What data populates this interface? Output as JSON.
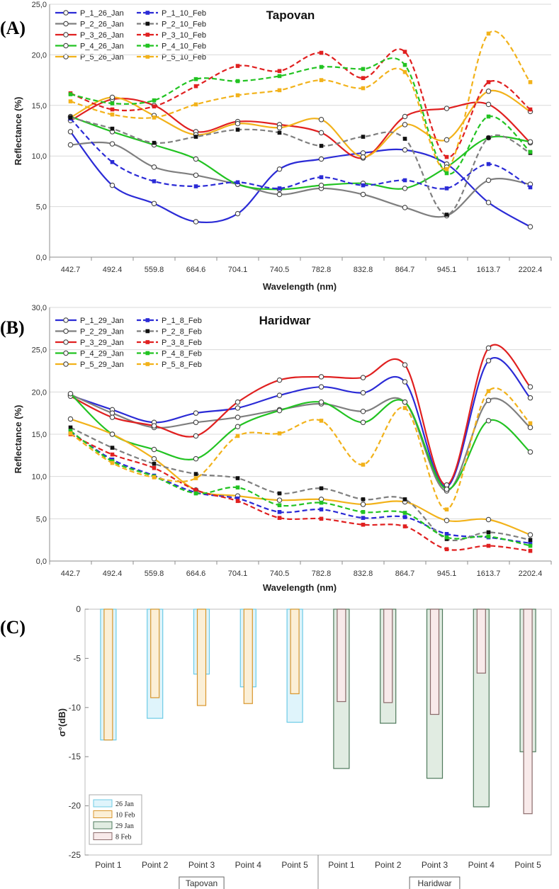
{
  "chart_data": [
    {
      "type": "line",
      "panel_label": "(A)",
      "title": "Tapovan",
      "xlabel": "Wavelength (nm)",
      "ylabel": "Reflectance (%)",
      "categories": [
        "442.7",
        "492.4",
        "559.8",
        "664.6",
        "704.1",
        "740.5",
        "782.8",
        "832.8",
        "864.7",
        "945.1",
        "1613.7",
        "2202.4"
      ],
      "ylim": [
        0,
        25
      ],
      "yticks": [
        "0,0",
        "5,0",
        "10,0",
        "15,0",
        "20,0",
        "25,0"
      ],
      "ytick_values": [
        0,
        5,
        10,
        15,
        20,
        25
      ],
      "series": [
        {
          "name": "P_1_26_Jan",
          "color": "#2b2bd6",
          "style": "solid",
          "values": [
            12.4,
            7.1,
            5.3,
            3.5,
            4.3,
            8.7,
            9.7,
            10.3,
            10.6,
            9.2,
            5.4,
            3.0
          ]
        },
        {
          "name": "P_2_26_Jan",
          "color": "#7f7f7f",
          "style": "solid",
          "values": [
            11.1,
            11.2,
            8.9,
            8.1,
            7.2,
            6.2,
            6.8,
            6.2,
            4.9,
            4.1,
            7.6,
            7.2
          ]
        },
        {
          "name": "P_3_26_Jan",
          "color": "#e02020",
          "style": "solid",
          "values": [
            13.5,
            15.6,
            15.0,
            12.4,
            13.4,
            13.1,
            12.3,
            9.8,
            13.9,
            14.7,
            15.1,
            11.3
          ]
        },
        {
          "name": "P_4_26_Jan",
          "color": "#22c322",
          "style": "solid",
          "values": [
            13.9,
            12.4,
            11.1,
            9.7,
            7.2,
            6.7,
            7.1,
            7.3,
            6.8,
            8.9,
            11.8,
            11.4
          ]
        },
        {
          "name": "P_5_26_Jan",
          "color": "#f2b21a",
          "style": "solid",
          "values": [
            13.8,
            15.8,
            14.0,
            12.1,
            13.2,
            12.8,
            13.6,
            9.9,
            13.1,
            11.6,
            16.4,
            14.4
          ]
        },
        {
          "name": "P_1_10_Feb",
          "color": "#2b2bd6",
          "style": "dashed",
          "values": [
            13.7,
            9.4,
            7.5,
            7.0,
            7.4,
            6.8,
            7.9,
            7.1,
            7.6,
            6.8,
            9.2,
            6.9
          ]
        },
        {
          "name": "P_2_10_Feb",
          "color": "#7f7f7f",
          "style": "dashed",
          "values": [
            13.8,
            12.7,
            11.3,
            11.9,
            12.6,
            12.3,
            11.0,
            11.9,
            11.7,
            4.2,
            11.8,
            10.3
          ]
        },
        {
          "name": "P_3_10_Feb",
          "color": "#e02020",
          "style": "dashed",
          "values": [
            16.2,
            14.6,
            14.9,
            16.9,
            18.9,
            18.4,
            20.2,
            17.7,
            20.3,
            9.9,
            17.3,
            14.6
          ]
        },
        {
          "name": "P_4_10_Feb",
          "color": "#22c322",
          "style": "dashed",
          "values": [
            16.1,
            15.2,
            15.5,
            17.6,
            17.4,
            17.9,
            18.8,
            18.6,
            19.0,
            8.3,
            13.9,
            10.4
          ]
        },
        {
          "name": "P_5_10_Feb",
          "color": "#f2b21a",
          "style": "dashed",
          "values": [
            15.4,
            14.1,
            13.8,
            15.1,
            16.0,
            16.5,
            17.5,
            16.7,
            18.3,
            8.7,
            22.1,
            17.3
          ]
        }
      ]
    },
    {
      "type": "line",
      "panel_label": "(B)",
      "title": "Haridwar",
      "xlabel": "Wavelength (nm)",
      "ylabel": "Reflectance (%)",
      "categories": [
        "442.7",
        "492.4",
        "559.8",
        "664.6",
        "704.1",
        "740.5",
        "782.8",
        "832.8",
        "864.7",
        "945.1",
        "1613.7",
        "2202.4"
      ],
      "ylim": [
        0,
        30
      ],
      "yticks": [
        "0,0",
        "5,0",
        "10,0",
        "15,0",
        "20,0",
        "25,0",
        "30,0"
      ],
      "ytick_values": [
        0,
        5,
        10,
        15,
        20,
        25,
        30
      ],
      "series": [
        {
          "name": "P_1_29_Jan",
          "color": "#2b2bd6",
          "style": "solid",
          "values": [
            19.6,
            17.9,
            16.4,
            17.5,
            18.1,
            19.6,
            20.6,
            19.9,
            21.2,
            8.8,
            23.7,
            19.3
          ]
        },
        {
          "name": "P_2_29_Jan",
          "color": "#7f7f7f",
          "style": "solid",
          "values": [
            19.7,
            17.5,
            15.8,
            16.4,
            17.0,
            17.9,
            18.6,
            17.7,
            18.8,
            8.3,
            19.0,
            15.8
          ]
        },
        {
          "name": "P_3_29_Jan",
          "color": "#e02020",
          "style": "solid",
          "values": [
            19.5,
            17.0,
            16.0,
            14.8,
            18.8,
            21.4,
            21.8,
            21.7,
            23.2,
            9.0,
            25.2,
            20.6
          ]
        },
        {
          "name": "P_4_29_Jan",
          "color": "#22c322",
          "style": "solid",
          "values": [
            19.8,
            15.0,
            13.2,
            12.1,
            15.9,
            17.8,
            18.8,
            16.4,
            18.8,
            8.5,
            16.6,
            12.9
          ]
        },
        {
          "name": "P_5_29_Jan",
          "color": "#f2b21a",
          "style": "solid",
          "values": [
            16.8,
            15.0,
            12.1,
            8.4,
            7.7,
            7.2,
            7.3,
            6.7,
            7.0,
            4.8,
            4.9,
            3.1
          ]
        },
        {
          "name": "P_1_8_Feb",
          "color": "#2b2bd6",
          "style": "dashed",
          "values": [
            15.3,
            12.0,
            10.1,
            8.1,
            7.4,
            5.8,
            6.1,
            5.1,
            5.2,
            3.2,
            2.8,
            2.1
          ]
        },
        {
          "name": "P_2_8_Feb",
          "color": "#7f7f7f",
          "style": "dashed",
          "values": [
            15.8,
            13.4,
            11.5,
            10.3,
            9.8,
            8.0,
            8.6,
            7.3,
            7.3,
            2.6,
            3.4,
            2.5
          ]
        },
        {
          "name": "P_3_8_Feb",
          "color": "#e02020",
          "style": "dashed",
          "values": [
            15.0,
            12.6,
            11.0,
            8.4,
            7.1,
            5.1,
            5.0,
            4.3,
            4.1,
            1.4,
            1.8,
            1.2
          ]
        },
        {
          "name": "P_4_8_Feb",
          "color": "#22c322",
          "style": "dashed",
          "values": [
            15.4,
            11.8,
            10.0,
            8.0,
            8.7,
            6.6,
            6.9,
            5.8,
            5.7,
            2.8,
            2.9,
            1.8
          ]
        },
        {
          "name": "P_5_8_Feb",
          "color": "#f2b21a",
          "style": "dashed",
          "values": [
            15.1,
            11.6,
            9.9,
            9.8,
            14.8,
            15.1,
            16.6,
            11.4,
            18.1,
            6.1,
            20.1,
            16.3
          ]
        }
      ]
    },
    {
      "type": "bar",
      "panel_label": "(C)",
      "ylabel": "σ°(dB)",
      "ylim": [
        -25,
        0
      ],
      "yticks": [
        "0",
        "-5",
        "-10",
        "-15",
        "-20",
        "-25"
      ],
      "ytick_values": [
        0,
        -5,
        -10,
        -15,
        -20,
        -25
      ],
      "groups": [
        {
          "name": "Tapovan",
          "categories": [
            "Point 1",
            "Point 2",
            "Point 3",
            "Point 4",
            "Point 5"
          ]
        },
        {
          "name": "Haridwar",
          "categories": [
            "Point 1",
            "Point 2",
            "Point 3",
            "Point 4",
            "Point 5"
          ]
        }
      ],
      "series": [
        {
          "name": "26 Jan",
          "group": "Tapovan",
          "fill": "#dff4fb",
          "stroke": "#6ccbe6",
          "values": [
            -13.3,
            -11.1,
            -6.6,
            -7.9,
            -11.5
          ]
        },
        {
          "name": "10 Feb",
          "group": "Tapovan",
          "fill": "#fbefd6",
          "stroke": "#d9962c",
          "values": [
            -13.3,
            -9.0,
            -9.8,
            -9.6,
            -8.6
          ]
        },
        {
          "name": "29 Jan",
          "group": "Haridwar",
          "fill": "#e1ece2",
          "stroke": "#4f7a5c",
          "values": [
            -16.2,
            -11.6,
            -17.2,
            -20.1,
            -14.5
          ]
        },
        {
          "name": "8 Feb",
          "group": "Haridwar",
          "fill": "#f8eaea",
          "stroke": "#8a6a6a",
          "values": [
            -9.4,
            -9.5,
            -10.7,
            -6.5,
            -20.8
          ]
        }
      ],
      "legend": [
        "26 Jan",
        "10 Feb",
        "29 Jan",
        "8 Feb"
      ]
    }
  ]
}
